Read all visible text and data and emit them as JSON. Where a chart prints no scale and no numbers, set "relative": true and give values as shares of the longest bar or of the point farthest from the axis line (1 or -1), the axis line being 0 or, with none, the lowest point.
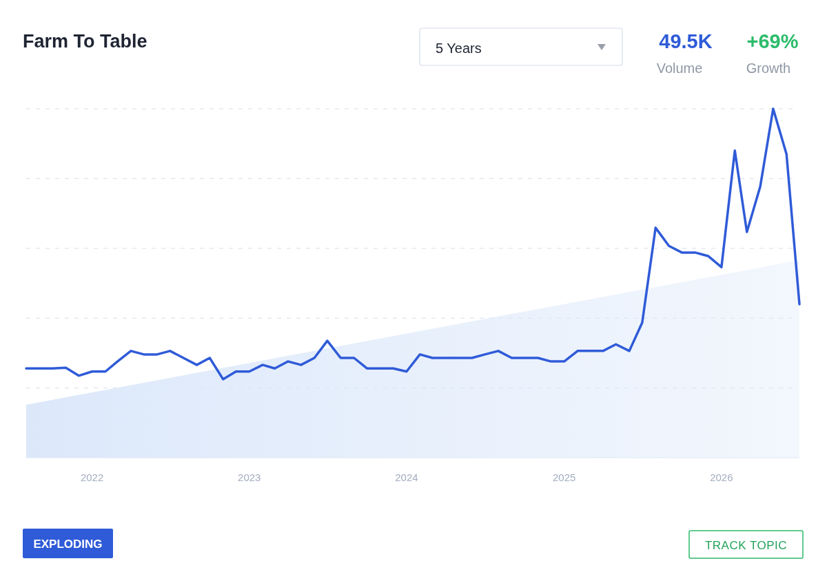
{
  "chart_data": {
    "type": "line",
    "title": "Farm To Table",
    "relative": true,
    "grid": "y",
    "x": [
      "2021-08",
      "2021-09",
      "2021-10",
      "2021-11",
      "2021-12",
      "2022-01",
      "2022-02",
      "2022-03",
      "2022-04",
      "2022-05",
      "2022-06",
      "2022-07",
      "2022-08",
      "2022-09",
      "2022-10",
      "2022-11",
      "2022-12",
      "2023-01",
      "2023-02",
      "2023-03",
      "2023-04",
      "2023-05",
      "2023-06",
      "2023-07",
      "2023-08",
      "2023-09",
      "2023-10",
      "2023-11",
      "2023-12",
      "2024-01",
      "2024-02",
      "2024-03",
      "2024-04",
      "2024-05",
      "2024-06",
      "2024-07",
      "2024-08",
      "2024-09",
      "2024-10",
      "2024-11",
      "2024-12",
      "2025-01",
      "2025-02",
      "2025-03",
      "2025-04",
      "2025-05",
      "2025-06",
      "2025-07",
      "2025-08",
      "2025-09",
      "2025-10",
      "2025-11",
      "2025-12",
      "2026-01",
      "2026-02",
      "2026-03",
      "2026-04",
      "2026-05",
      "2026-06",
      "2026-07"
    ],
    "xlim": [
      "2021-08",
      "2026-07"
    ],
    "xticks": [
      {
        "value": "2022",
        "label": "2022"
      },
      {
        "value": "2023",
        "label": "2023"
      },
      {
        "value": "2024",
        "label": "2024"
      },
      {
        "value": "2025",
        "label": "2025"
      },
      {
        "value": "2026",
        "label": "2026"
      }
    ],
    "series": [
      {
        "type": "area",
        "color": "#dce8fa",
        "x": [
          "2021-08",
          "2026-07"
        ],
        "values": [
          0.152,
          0.566
        ]
      },
      {
        "color": "#2f5bd8",
        "values": [
          0.256,
          0.256,
          0.256,
          0.258,
          0.235,
          0.247,
          0.247,
          0.276,
          0.306,
          0.296,
          0.296,
          0.306,
          0.286,
          0.266,
          0.286,
          0.225,
          0.247,
          0.247,
          0.266,
          0.256,
          0.276,
          0.266,
          0.286,
          0.335,
          0.286,
          0.286,
          0.256,
          0.256,
          0.256,
          0.247,
          0.296,
          0.286,
          0.286,
          0.286,
          0.286,
          0.296,
          0.306,
          0.286,
          0.286,
          0.286,
          0.276,
          0.276,
          0.306,
          0.306,
          0.306,
          0.325,
          0.306,
          0.387,
          0.659,
          0.607,
          0.588,
          0.588,
          0.578,
          0.546,
          0.88,
          0.647,
          0.777,
          1,
          0.87,
          0.44
        ]
      }
    ],
    "marker": "none",
    "line_style": "solid",
    "annotations": [
      "5 Years",
      "49.5K",
      "Volume",
      "+69%",
      "Growth",
      "EXPLODING",
      "TRACK TOPIC"
    ]
  }
}
